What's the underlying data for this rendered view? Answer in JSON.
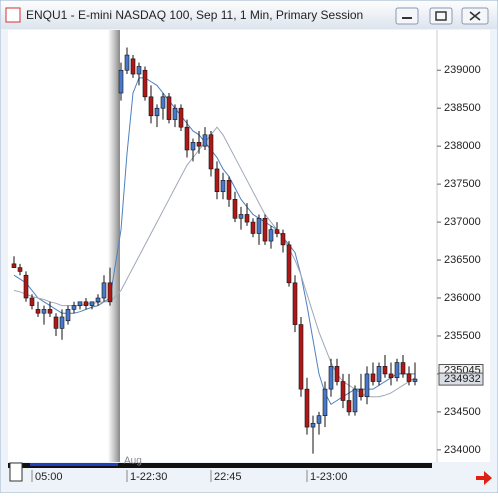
{
  "chart_data": {
    "type": "candlestick",
    "title": "ENQU1 - E-mini NASDAQ 100, Sep 11, 1 Min, Primary Session",
    "date_label": "Aug",
    "up_color": "#4a78c8",
    "down_color": "#b01818",
    "open": [
      236450,
      236400,
      236300,
      236000,
      235850,
      235800,
      235850,
      235750,
      235600,
      235700,
      235850,
      235900,
      235950,
      235900,
      235950,
      236000,
      236200,
      238700,
      239000,
      239150,
      238950,
      239000,
      238650,
      238400,
      238500,
      238650,
      238350,
      238500,
      238250,
      237950,
      238050,
      238000,
      238150,
      237700,
      237400,
      237550,
      237300,
      237050,
      237100,
      237000,
      236850,
      237050,
      236750,
      236900,
      236850,
      236700,
      236200,
      235650,
      234800,
      234300,
      234350,
      234450,
      234800,
      235100,
      234900,
      234650,
      234500,
      234800,
      234700,
      235000,
      234900,
      235100,
      235000,
      234950,
      235150,
      235000,
      234900
    ],
    "high": [
      236550,
      236450,
      236350,
      236050,
      235950,
      235900,
      235950,
      235800,
      235850,
      235900,
      235950,
      235950,
      236000,
      235950,
      236050,
      236300,
      236400,
      239100,
      239300,
      239200,
      239100,
      239050,
      238800,
      238550,
      238700,
      238700,
      238550,
      238550,
      238350,
      238100,
      238200,
      238250,
      238200,
      237800,
      237650,
      237600,
      237400,
      237200,
      237250,
      237050,
      237100,
      237100,
      236950,
      237000,
      236900,
      236750,
      236300,
      235750,
      234950,
      234450,
      234500,
      234900,
      235200,
      235200,
      235000,
      235000,
      234850,
      235000,
      235100,
      235150,
      235150,
      235250,
      235150,
      235200,
      235250,
      235100,
      235150
    ],
    "low": [
      236400,
      236300,
      235950,
      235850,
      235750,
      235650,
      235750,
      235500,
      235450,
      235650,
      235800,
      235850,
      235850,
      235850,
      235900,
      235950,
      235900,
      238600,
      238950,
      238900,
      238800,
      238600,
      238300,
      238250,
      238350,
      238300,
      238250,
      238200,
      237850,
      237800,
      237900,
      237950,
      237600,
      237300,
      237300,
      237200,
      237000,
      236900,
      236950,
      236800,
      236700,
      236700,
      236650,
      236800,
      236600,
      236150,
      235550,
      234700,
      234200,
      233950,
      234200,
      234300,
      234700,
      234850,
      234550,
      234450,
      234450,
      234650,
      234600,
      234850,
      234850,
      234950,
      234850,
      234900,
      234950,
      234850,
      234850
    ],
    "close": [
      236400,
      236350,
      236000,
      235900,
      235800,
      235850,
      235800,
      235600,
      235750,
      235850,
      235900,
      235950,
      235900,
      235950,
      236000,
      236200,
      235950,
      239000,
      239200,
      238950,
      239050,
      238650,
      238400,
      238500,
      238650,
      238350,
      238500,
      238250,
      237950,
      238050,
      238000,
      238150,
      237700,
      237400,
      237550,
      237300,
      237050,
      237100,
      237000,
      236850,
      237050,
      236750,
      236900,
      236850,
      236700,
      236200,
      235650,
      234800,
      234300,
      234350,
      234450,
      234800,
      235100,
      234900,
      234650,
      234500,
      234800,
      234700,
      235000,
      234900,
      235100,
      235000,
      234950,
      235150,
      235000,
      234900,
      234932
    ],
    "series": [
      {
        "color": "#4f81bd",
        "values": [
          236300,
          236250,
          236200,
          236100,
          236000,
          235950,
          235900,
          235850,
          235800,
          235800,
          235800,
          235820,
          235850,
          235880,
          235900,
          235950,
          236000,
          236900,
          237900,
          238700,
          238900,
          238900,
          238850,
          238800,
          238700,
          238600,
          238500,
          238400,
          238300,
          238200,
          238150,
          238050,
          237950,
          237850,
          237700,
          237600,
          237450,
          237300,
          237200,
          237100,
          237050,
          237000,
          236950,
          236900,
          236800,
          236700,
          236600,
          236300,
          235900,
          235450,
          235000,
          234750,
          234600,
          234650,
          234700,
          234750,
          234800,
          234800,
          234800,
          234800,
          234850,
          234900,
          234950,
          235000,
          235000,
          235000,
          235000
        ]
      },
      {
        "color": "#a0a8b8",
        "values": [
          236100,
          236080,
          236050,
          236020,
          236000,
          235980,
          235950,
          235930,
          235900,
          235900,
          235900,
          235900,
          235920,
          235930,
          235940,
          235950,
          235950,
          236100,
          236250,
          236400,
          236550,
          236700,
          236850,
          237000,
          237150,
          237300,
          237450,
          237600,
          237750,
          237850,
          237950,
          238050,
          238150,
          238250,
          238150,
          238000,
          237850,
          237700,
          237550,
          237400,
          237250,
          237100,
          237000,
          236900,
          236800,
          236650,
          236500,
          236300,
          236050,
          235800,
          235550,
          235350,
          235150,
          235000,
          234900,
          234850,
          234800,
          234750,
          234700,
          234700,
          234700,
          234720,
          234750,
          234800,
          234850,
          234900,
          234950
        ]
      }
    ],
    "price_markers": [
      235045,
      234932
    ],
    "ylim": [
      233840,
      239530
    ],
    "yticks": [
      234000,
      234500,
      235000,
      235500,
      236000,
      236500,
      237000,
      237500,
      238000,
      238500,
      239000
    ],
    "xticks": [
      {
        "value": 3,
        "label": "05:00"
      },
      {
        "value": 18,
        "label": "1-22:30"
      },
      {
        "value": 32,
        "label": "22:45"
      },
      {
        "value": 48,
        "label": "1-23:00"
      }
    ]
  }
}
